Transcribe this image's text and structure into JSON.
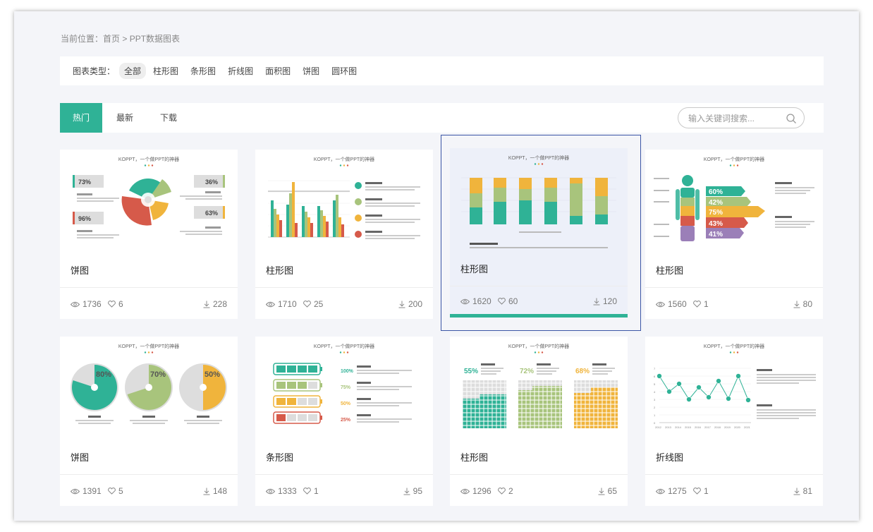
{
  "breadcrumb": {
    "prefix": "当前位置：",
    "home": "首页",
    "sep": " > ",
    "current": "PPT数据图表"
  },
  "filter": {
    "label": "图表类型：",
    "options": [
      "全部",
      "柱形图",
      "条形图",
      "折线图",
      "面积图",
      "饼图",
      "圆环图"
    ],
    "active": "全部"
  },
  "tabs": {
    "items": [
      "热门",
      "最新",
      "下载"
    ],
    "active": "热门"
  },
  "search": {
    "placeholder": "输入关键词搜索..."
  },
  "thumb": {
    "heading": "KOPPT，一个做PPT的神器"
  },
  "cards": [
    {
      "title": "饼图",
      "views": "1736",
      "likes": "6",
      "downloads": "228",
      "labels": [
        "73%",
        "96%",
        "36%",
        "63%"
      ]
    },
    {
      "title": "柱形图",
      "views": "1710",
      "likes": "25",
      "downloads": "200"
    },
    {
      "title": "柱形图",
      "views": "1620",
      "likes": "60",
      "downloads": "120"
    },
    {
      "title": "柱形图",
      "views": "1560",
      "likes": "1",
      "downloads": "80",
      "labels": [
        "60%",
        "42%",
        "75%",
        "43%",
        "41%"
      ]
    },
    {
      "title": "饼图",
      "views": "1391",
      "likes": "5",
      "downloads": "148",
      "labels": [
        "80%",
        "70%",
        "50%"
      ]
    },
    {
      "title": "条形图",
      "views": "1333",
      "likes": "1",
      "downloads": "95",
      "labels": [
        "100%",
        "75%",
        "50%",
        "25%"
      ]
    },
    {
      "title": "柱形图",
      "views": "1296",
      "likes": "2",
      "downloads": "65",
      "labels": [
        "55%",
        "72%",
        "68%"
      ]
    },
    {
      "title": "折线图",
      "views": "1275",
      "likes": "1",
      "downloads": "81",
      "years": [
        "2012",
        "2013",
        "2014",
        "2015",
        "2016",
        "2017",
        "2018",
        "2019",
        "2020",
        "2021"
      ],
      "y_ticks": [
        "0",
        "1",
        "2",
        "3",
        "4",
        "5",
        "6",
        "7"
      ]
    }
  ],
  "colors": {
    "accent": "#2fb296",
    "green": "#a8c47c",
    "yellow": "#f0b43c",
    "red": "#d65a4a",
    "purple": "#9b7fb8",
    "hover_border": "#3b56a6"
  }
}
